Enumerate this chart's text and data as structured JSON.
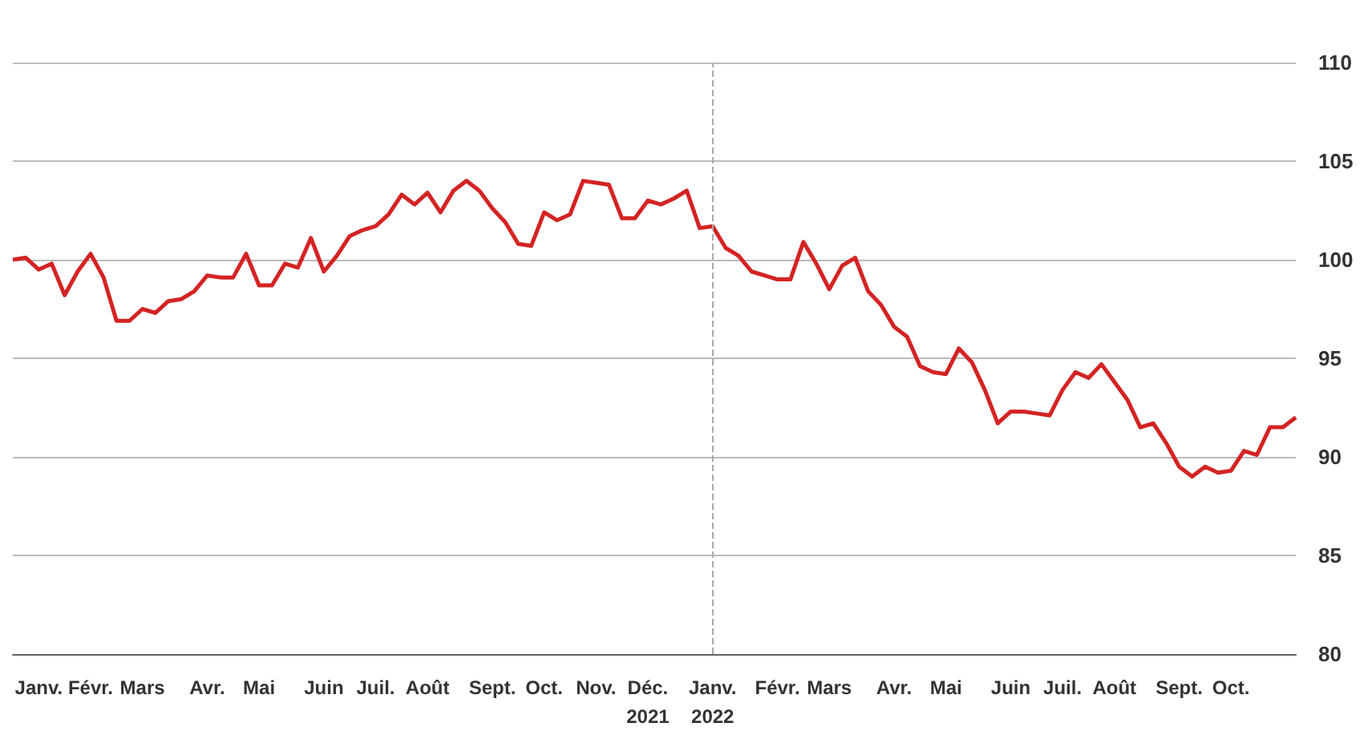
{
  "chart_data": {
    "type": "line",
    "categories": [
      null,
      null,
      "Janv.",
      null,
      null,
      null,
      "Févr.",
      null,
      null,
      null,
      "Mars",
      null,
      null,
      null,
      null,
      "Avr.",
      null,
      null,
      null,
      "Mai",
      null,
      null,
      null,
      null,
      "Juin",
      null,
      null,
      null,
      "Juil.",
      null,
      null,
      null,
      "Août",
      null,
      null,
      null,
      null,
      "Sept.",
      null,
      null,
      null,
      "Oct.",
      null,
      null,
      null,
      "Nov.",
      null,
      null,
      null,
      "Déc.\n2021",
      null,
      null,
      null,
      null,
      "Janv.\n2022",
      null,
      null,
      null,
      null,
      "Févr.",
      null,
      null,
      null,
      "Mars",
      null,
      null,
      null,
      null,
      "Avr.",
      null,
      null,
      null,
      "Mai",
      null,
      null,
      null,
      null,
      "Juin",
      null,
      null,
      null,
      "Juil.",
      null,
      null,
      null,
      "Août",
      null,
      null,
      null,
      null,
      "Sept.",
      null,
      null,
      null,
      "Oct.",
      null,
      null,
      null,
      null,
      null
    ],
    "series": [
      {
        "color": "#d42323",
        "values": [
          100,
          100.1,
          99.5,
          99.8,
          98.2,
          99.4,
          100.3,
          99.1,
          96.9,
          96.9,
          97.5,
          97.3,
          97.9,
          98.0,
          98.4,
          99.2,
          99.1,
          99.1,
          100.3,
          98.7,
          98.7,
          99.8,
          99.6,
          101.1,
          99.4,
          100.2,
          101.2,
          101.5,
          101.7,
          102.3,
          103.3,
          102.8,
          103.4,
          102.4,
          103.5,
          104.0,
          103.5,
          102.6,
          101.9,
          100.8,
          100.7,
          102.4,
          102.0,
          102.3,
          104.0,
          103.9,
          103.8,
          102.1,
          102.1,
          103.0,
          102.8,
          103.1,
          103.5,
          101.6,
          101.7,
          100.6,
          100.2,
          99.4,
          99.2,
          99.0,
          99.0,
          100.9,
          99.8,
          98.5,
          99.7,
          100.1,
          98.4,
          97.7,
          96.6,
          96.1,
          94.6,
          94.3,
          94.2,
          95.5,
          94.8,
          93.4,
          91.7,
          92.3,
          92.3,
          92.2,
          92.1,
          93.4,
          94.3,
          94.0,
          94.7,
          93.8,
          92.9,
          91.5,
          91.7,
          90.7,
          89.5,
          89.0,
          89.5,
          89.2,
          89.3,
          90.3,
          90.1,
          91.5,
          91.5,
          92.0
        ]
      }
    ],
    "ylim": [
      80,
      110
    ],
    "yticks": [
      80,
      85,
      90,
      95,
      100,
      105,
      110
    ],
    "grid": "y",
    "marker": "none",
    "line_style": "solid",
    "ref_lines": [
      {
        "axis": "x",
        "value": "Janv.\n2022",
        "color": "#aaaaaa",
        "line_style": "dashed"
      }
    ]
  }
}
